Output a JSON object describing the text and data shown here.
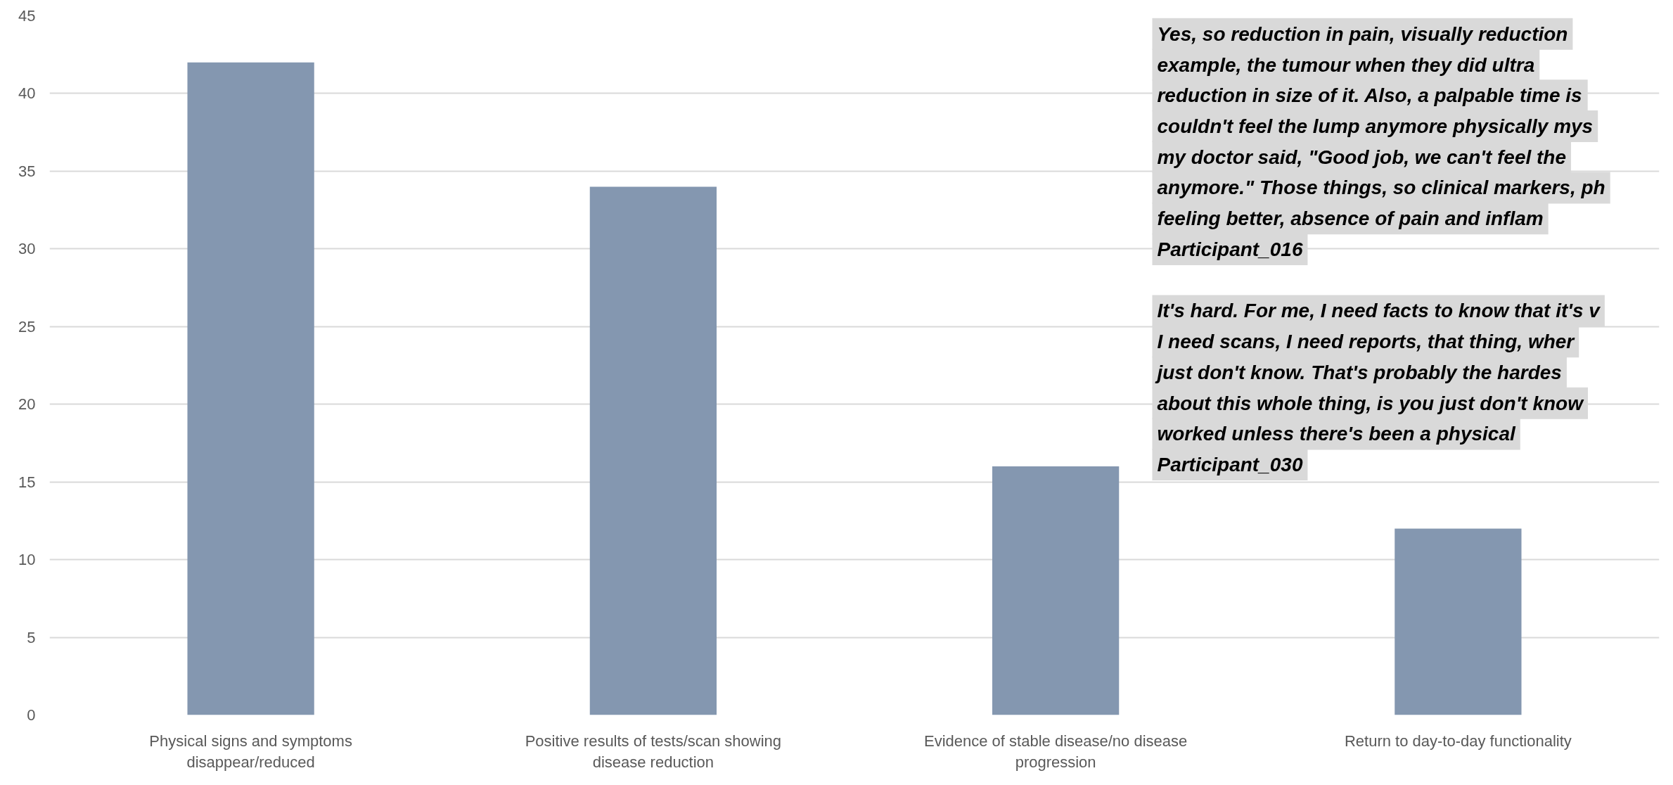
{
  "chart_data": {
    "type": "bar",
    "categories": [
      "Physical signs and symptoms disappear/reduced",
      "Positive results of tests/scan showing disease reduction",
      "Evidence of stable disease/no disease progression",
      "Return to day-to-day functionality"
    ],
    "values": [
      42,
      34,
      16,
      12
    ],
    "color": "#8497b0",
    "ylim": [
      0,
      45
    ],
    "yticks": [
      0,
      5,
      10,
      15,
      20,
      25,
      30,
      35,
      40,
      45
    ],
    "grid": "y",
    "annotations": [
      "Yes, so reduction in pain, visually reduction\nexample, the tumour when they did ultra\nreduction in size of it. Also, a palpable time is\ncouldn't feel the lump anymore physically mys\nmy doctor said, \"Good job, we can't feel the\nanymore.\" Those things, so clinical markers, ph\nfeeling better, absence of pain and inflam\nParticipant_016",
      "It's hard. For me, I need facts to know that it's v\nI need scans, I need reports, that thing, wher\njust don't know. That's probably the hardes\nabout this whole thing, is you just don't know\nworked unless there's been a physical\nParticipant_030"
    ]
  }
}
